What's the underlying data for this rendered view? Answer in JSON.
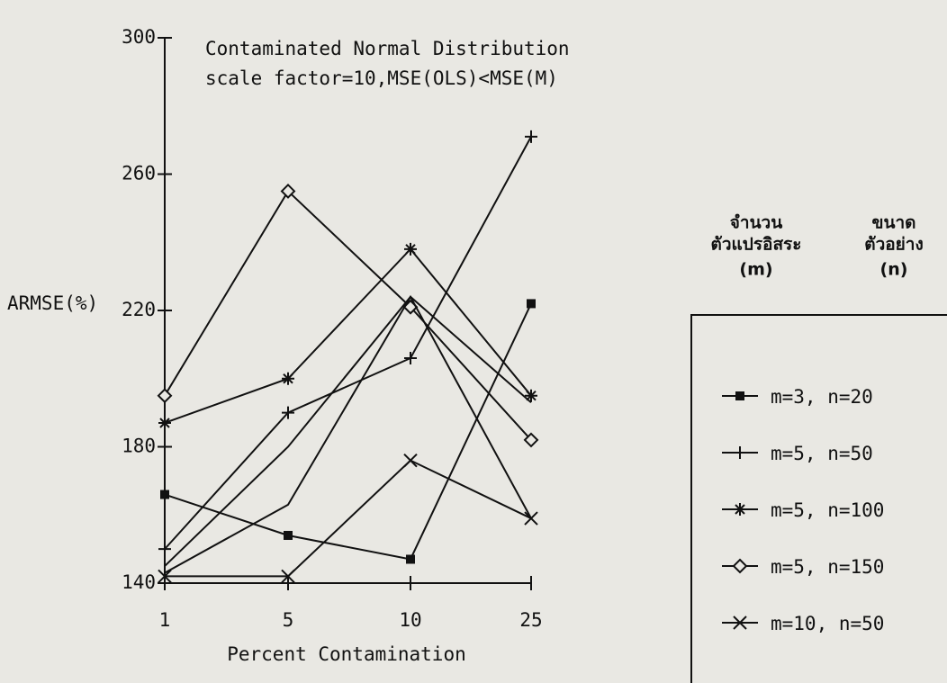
{
  "chart_data": {
    "type": "line",
    "title": "Contaminated Normal Distribution",
    "subtitle": "scale factor=10,MSE(OLS)<MSE(M)",
    "x_label": "Percent Contamination",
    "y_label": "ARMSE(%)",
    "categories": [
      "1",
      "5",
      "10",
      "25"
    ],
    "ylim": [
      140,
      300
    ],
    "yticks": [
      140,
      180,
      220,
      260,
      300
    ],
    "legend_heading": [
      "จำนวน",
      "ตัวแปรอิสระ",
      "(m)",
      "ขนาด",
      "ตัวอย่าง",
      "(n)"
    ],
    "color": "#111111",
    "series": [
      {
        "name": "m=3, n=20",
        "marker": "square",
        "values": [
          166,
          154,
          147,
          222
        ]
      },
      {
        "name": "m=5, n=50",
        "marker": "plus",
        "values": [
          150,
          190,
          206,
          271
        ]
      },
      {
        "name": "m=5, n=100",
        "marker": "asterisk",
        "values": [
          187,
          200,
          238,
          195
        ]
      },
      {
        "name": "m=5, n=150",
        "marker": "diamond",
        "values": [
          195,
          255,
          221,
          182
        ]
      },
      {
        "name": "m=10, n=50",
        "marker": "x",
        "values": [
          142,
          142,
          176,
          159
        ]
      },
      {
        "marker": "none",
        "values": [
          145,
          180,
          224,
          193
        ]
      },
      {
        "marker": "none",
        "values": [
          143,
          163,
          224,
          159
        ]
      }
    ]
  }
}
